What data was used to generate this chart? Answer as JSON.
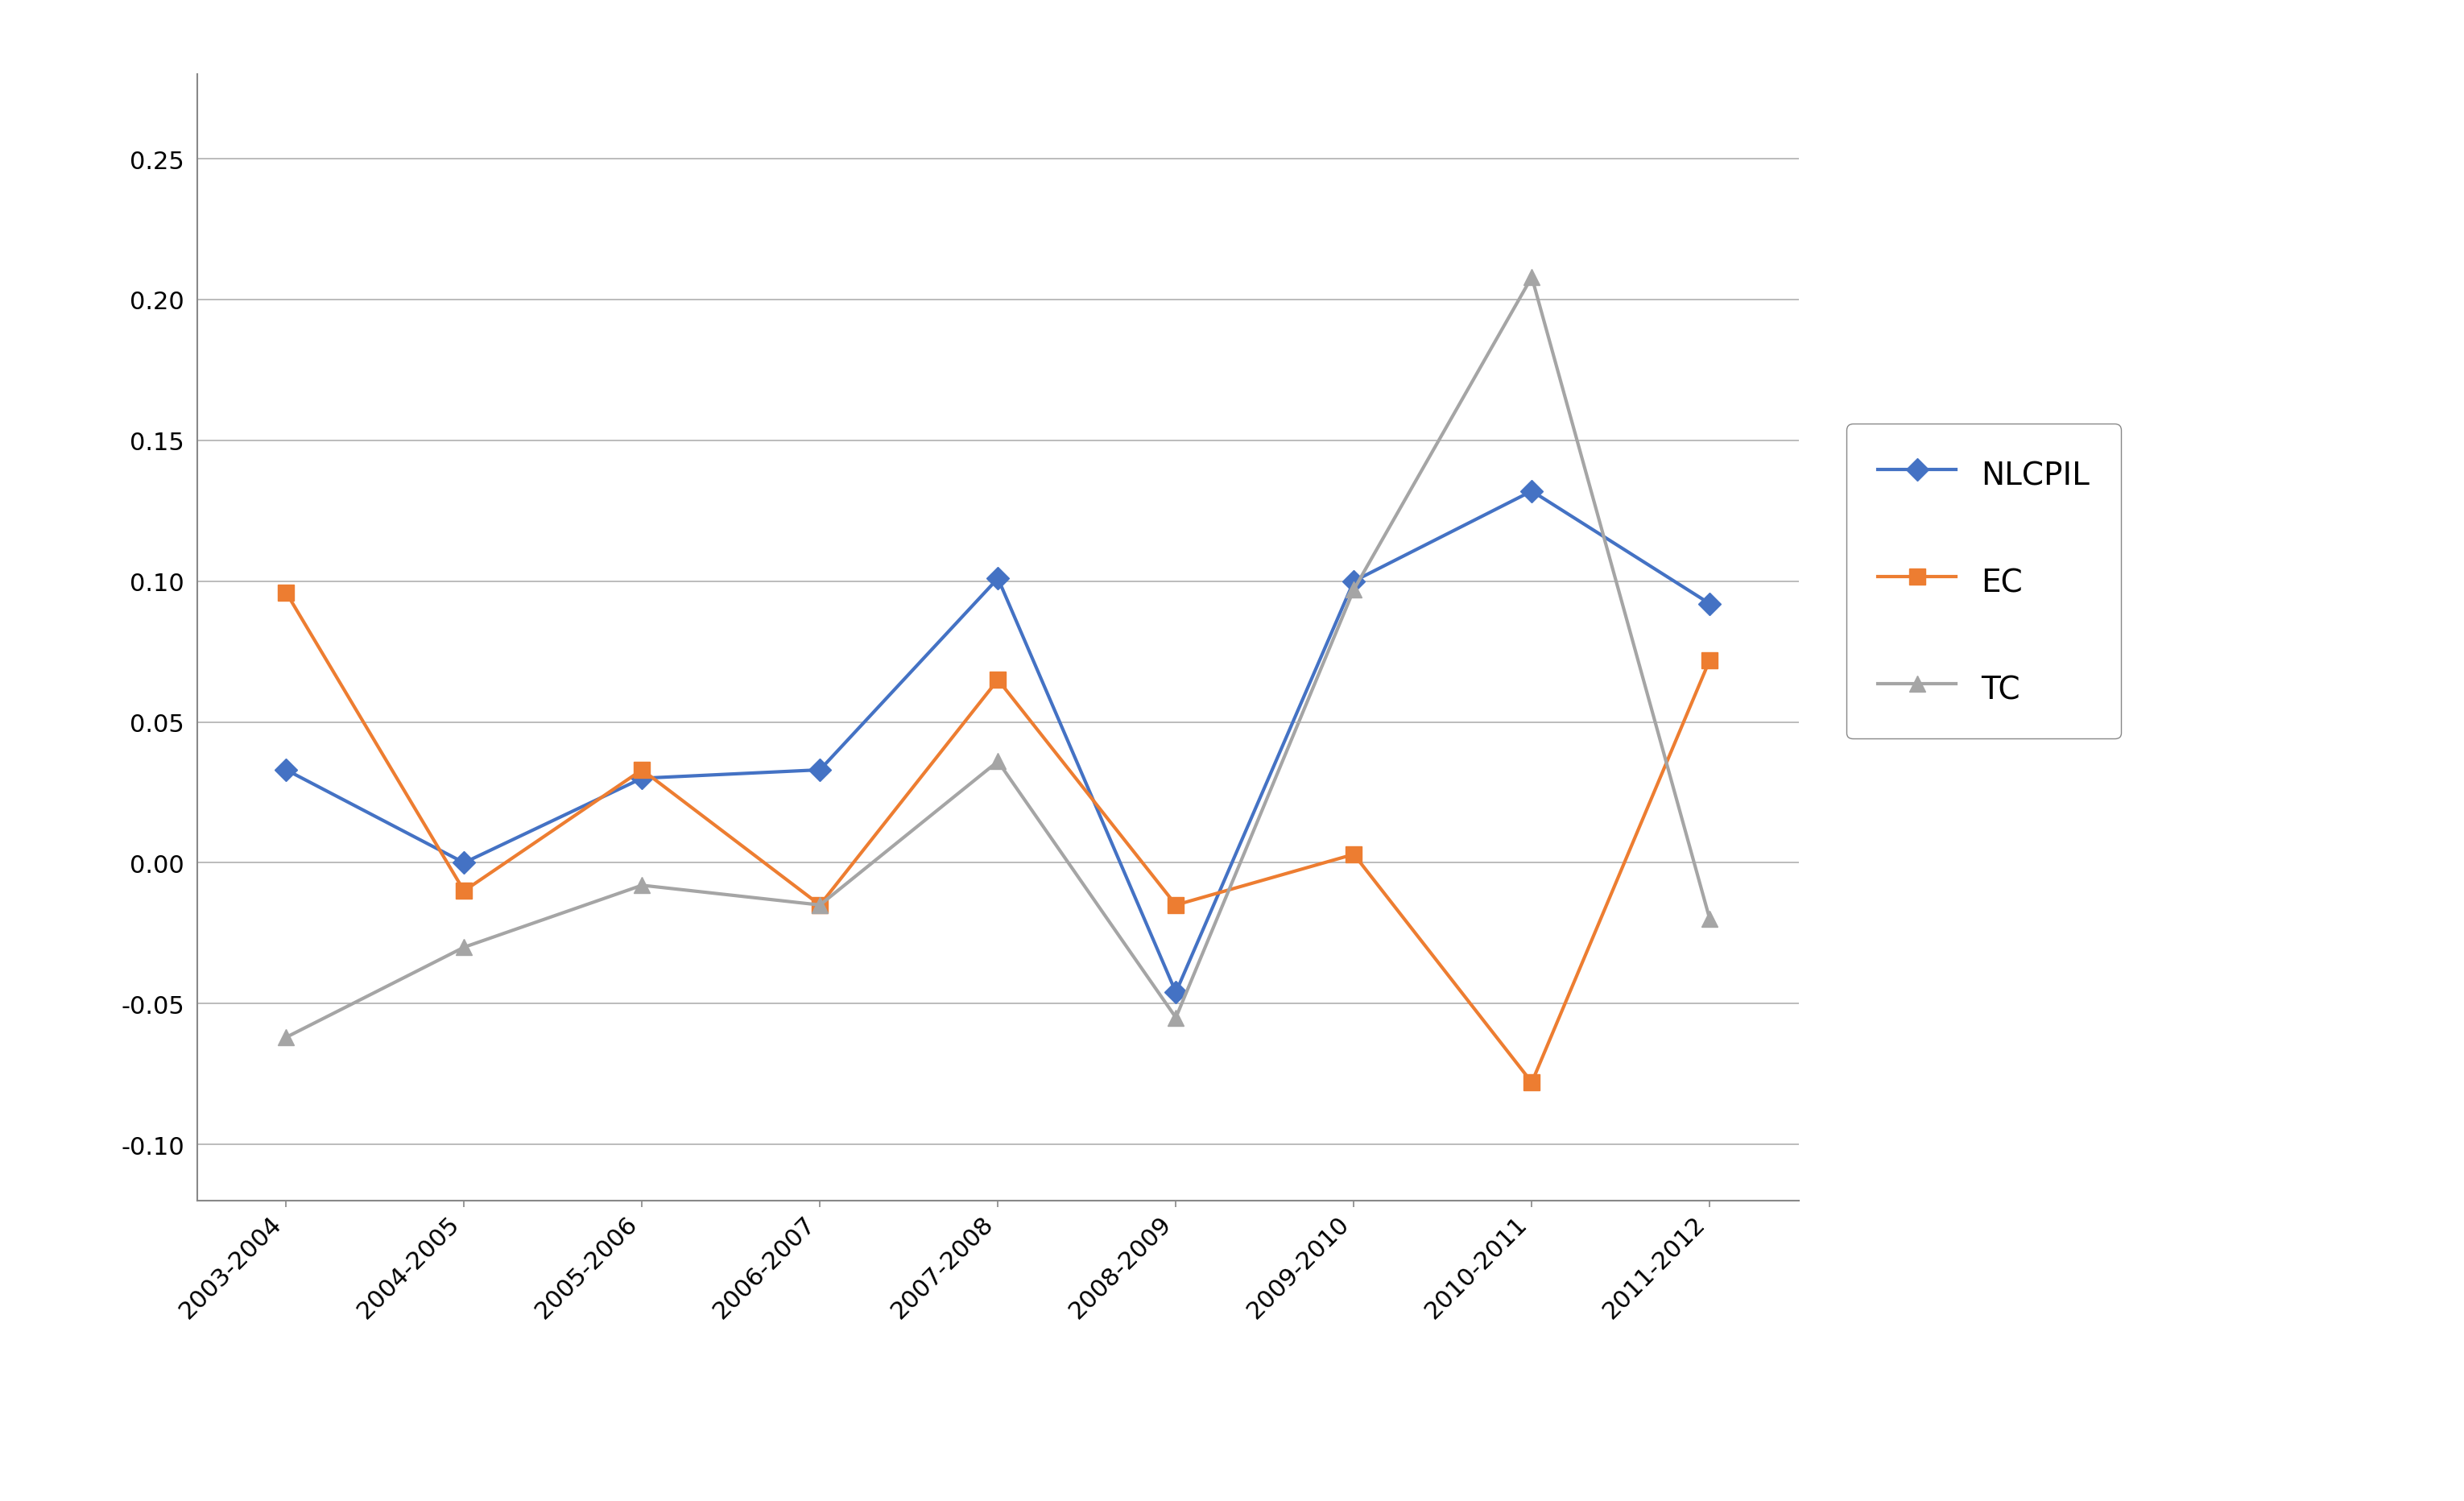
{
  "categories": [
    "2003-2004",
    "2004-2005",
    "2005-2006",
    "2006-2007",
    "2007-2008",
    "2008-2009",
    "2009-2010",
    "2010-2011",
    "2011-2012"
  ],
  "NLCPIL": [
    0.033,
    0.0,
    0.03,
    0.033,
    0.101,
    -0.046,
    0.1,
    0.132,
    0.092
  ],
  "EC": [
    0.096,
    -0.01,
    0.033,
    -0.015,
    0.065,
    -0.015,
    0.003,
    -0.078,
    0.072
  ],
  "TC": [
    -0.062,
    -0.03,
    -0.008,
    -0.015,
    0.036,
    -0.055,
    0.097,
    0.208,
    -0.02
  ],
  "NLCPIL_color": "#4472C4",
  "EC_color": "#ED7D31",
  "TC_color": "#A5A5A5",
  "NLCPIL_marker": "D",
  "EC_marker": "s",
  "TC_marker": "^",
  "ylim": [
    -0.12,
    0.28
  ],
  "yticks": [
    -0.1,
    -0.05,
    0.0,
    0.05,
    0.1,
    0.15,
    0.2,
    0.25
  ],
  "background_color": "#ffffff",
  "grid_color": "#B0B0B0",
  "legend_labels": [
    "NLCPIL",
    "EC",
    "TC"
  ],
  "line_width": 3.0,
  "marker_size": 14,
  "tick_fontsize": 22,
  "legend_fontsize": 28,
  "spine_color": "#888888"
}
